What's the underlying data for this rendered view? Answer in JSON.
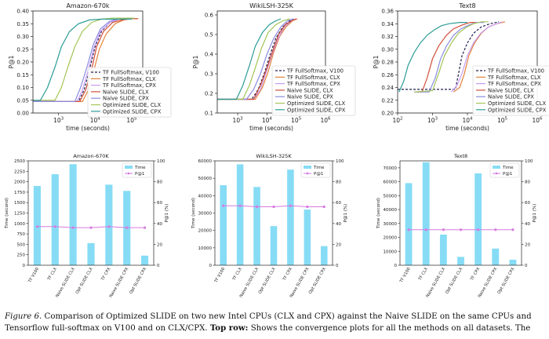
{
  "chart_data": [
    {
      "type": "line",
      "title": "Amazon-670k",
      "xlabel": "time (seconds)",
      "ylabel": "P@1",
      "xscale": "log",
      "xlim": [
        200,
        200000
      ],
      "ylim": [
        0.0,
        0.4
      ],
      "yticks": [
        "0.00",
        "0.05",
        "0.10",
        "0.15",
        "0.20",
        "0.25",
        "0.30",
        "0.35",
        "0.40"
      ],
      "xticks": [
        "10^3",
        "10^4",
        "10^5"
      ],
      "grid": false,
      "legend_position": "right",
      "series": [
        {
          "name": "TF FullSoftmax, V100",
          "color": "#1f1f4f",
          "dash": true,
          "x": [
            200,
            3500,
            5000,
            7000,
            10000,
            15000,
            25000,
            45000,
            80000,
            120000
          ],
          "y": [
            0.045,
            0.045,
            0.09,
            0.17,
            0.26,
            0.32,
            0.355,
            0.368,
            0.372,
            0.372
          ]
        },
        {
          "name": "TF FullSoftmax, CLX",
          "color": "#e3823b",
          "x": [
            200,
            4500,
            6500,
            9000,
            13000,
            20000,
            35000,
            60000,
            100000,
            150000
          ],
          "y": [
            0.045,
            0.045,
            0.09,
            0.16,
            0.25,
            0.31,
            0.35,
            0.365,
            0.37,
            0.37
          ]
        },
        {
          "name": "TF FullSoftmax, CPX",
          "color": "#c79cf2",
          "x": [
            200,
            3200,
            4500,
            6500,
            9500,
            14000,
            25000,
            45000,
            80000,
            120000
          ],
          "y": [
            0.045,
            0.045,
            0.09,
            0.17,
            0.26,
            0.32,
            0.355,
            0.368,
            0.37,
            0.37
          ]
        },
        {
          "name": "Naive SLIDE, CLX",
          "color": "#d14f3a",
          "x": [
            200,
            3800,
            5500,
            8000,
            11000,
            17000,
            30000,
            55000,
            100000,
            150000
          ],
          "y": [
            0.045,
            0.045,
            0.09,
            0.17,
            0.26,
            0.32,
            0.355,
            0.365,
            0.37,
            0.37
          ]
        },
        {
          "name": "Naive SLIDE, CPX",
          "color": "#8c8ce0",
          "x": [
            200,
            2800,
            4000,
            6000,
            9000,
            14000,
            25000,
            45000,
            80000,
            120000
          ],
          "y": [
            0.045,
            0.045,
            0.1,
            0.18,
            0.27,
            0.33,
            0.36,
            0.37,
            0.372,
            0.372
          ]
        },
        {
          "name": "Optimized SLIDE, CLX",
          "color": "#a3c557",
          "x": [
            200,
            800,
            1200,
            1800,
            2800,
            4500,
            8000,
            15000,
            30000,
            60000,
            120000
          ],
          "y": [
            0.05,
            0.05,
            0.1,
            0.18,
            0.26,
            0.32,
            0.355,
            0.368,
            0.372,
            0.372,
            0.372
          ]
        },
        {
          "name": "Optimized SLIDE, CPX",
          "color": "#2c9c96",
          "x": [
            200,
            320,
            500,
            800,
            1200,
            2000,
            3500,
            7000,
            15000,
            40000,
            100000
          ],
          "y": [
            0.05,
            0.05,
            0.1,
            0.18,
            0.26,
            0.32,
            0.35,
            0.365,
            0.368,
            0.368,
            0.368
          ]
        }
      ]
    },
    {
      "type": "line",
      "title": "WikiLSH-325K",
      "xlabel": "time (seconds)",
      "ylabel": "P@1",
      "xscale": "log",
      "xlim": [
        200,
        1000000
      ],
      "ylim": [
        0.1,
        0.62
      ],
      "yticks": [
        "0.1",
        "0.2",
        "0.3",
        "0.4",
        "0.5",
        "0.6"
      ],
      "xticks": [
        "10^3",
        "10^4",
        "10^5",
        "10^6"
      ],
      "grid": false,
      "legend_position": "right",
      "series": [
        {
          "name": "TF FullSoftmax, V100",
          "color": "#1f1f4f",
          "dash": true,
          "x": [
            200,
            3000,
            5000,
            8000,
            13000,
            20000,
            35000,
            60000,
            100000
          ],
          "y": [
            0.17,
            0.17,
            0.22,
            0.3,
            0.4,
            0.48,
            0.54,
            0.57,
            0.58
          ]
        },
        {
          "name": "TF FullSoftmax, CLX",
          "color": "#e3823b",
          "x": [
            200,
            4000,
            7000,
            11000,
            17000,
            27000,
            45000,
            75000,
            110000
          ],
          "y": [
            0.17,
            0.17,
            0.23,
            0.31,
            0.41,
            0.49,
            0.54,
            0.57,
            0.58
          ]
        },
        {
          "name": "TF FullSoftmax, CPX",
          "color": "#c79cf2",
          "x": [
            200,
            3500,
            6000,
            9500,
            15000,
            24000,
            40000,
            70000,
            100000
          ],
          "y": [
            0.17,
            0.17,
            0.22,
            0.31,
            0.4,
            0.48,
            0.54,
            0.57,
            0.58
          ]
        },
        {
          "name": "Naive SLIDE, CLX",
          "color": "#d14f3a",
          "x": [
            200,
            3500,
            6000,
            10000,
            16000,
            25000,
            42000,
            70000,
            100000
          ],
          "y": [
            0.17,
            0.17,
            0.24,
            0.33,
            0.42,
            0.5,
            0.55,
            0.57,
            0.58
          ]
        },
        {
          "name": "Naive SLIDE, CPX",
          "color": "#8c8ce0",
          "x": [
            200,
            2000,
            3500,
            6000,
            10000,
            17000,
            30000,
            50000,
            80000
          ],
          "y": [
            0.17,
            0.17,
            0.22,
            0.3,
            0.4,
            0.48,
            0.54,
            0.57,
            0.58
          ]
        },
        {
          "name": "Optimized SLIDE, CLX",
          "color": "#a3c557",
          "x": [
            200,
            1500,
            2500,
            4000,
            6500,
            11000,
            20000,
            35000,
            60000
          ],
          "y": [
            0.17,
            0.17,
            0.24,
            0.33,
            0.43,
            0.51,
            0.55,
            0.57,
            0.58
          ]
        },
        {
          "name": "Optimized SLIDE, CPX",
          "color": "#2c9c96",
          "x": [
            200,
            900,
            1500,
            2500,
            4000,
            7000,
            12000,
            20000,
            30000
          ],
          "y": [
            0.17,
            0.17,
            0.24,
            0.34,
            0.44,
            0.51,
            0.55,
            0.57,
            0.58
          ]
        }
      ]
    },
    {
      "type": "line",
      "title": "Text8",
      "xlabel": "time (seconds)",
      "ylabel": "P@1",
      "xscale": "log",
      "xlim": [
        100,
        1000000
      ],
      "ylim": [
        0.2,
        0.36
      ],
      "yticks": [
        "0.20",
        "0.22",
        "0.24",
        "0.26",
        "0.28",
        "0.30",
        "0.32",
        "0.34",
        "0.36"
      ],
      "xticks": [
        "10^2",
        "10^3",
        "10^4",
        "10^5",
        "10^6"
      ],
      "grid": false,
      "legend_position": "right",
      "series": [
        {
          "name": "TF FullSoftmax, V100",
          "color": "#1f1f4f",
          "dash": true,
          "x": [
            100,
            4500,
            5500,
            7000,
            10000,
            15000,
            25000,
            45000,
            80000
          ],
          "y": [
            0.237,
            0.237,
            0.26,
            0.29,
            0.31,
            0.325,
            0.335,
            0.34,
            0.343
          ]
        },
        {
          "name": "TF FullSoftmax, CLX",
          "color": "#e3823b",
          "x": [
            4000,
            6000,
            8000,
            11000,
            16000,
            25000,
            40000,
            70000,
            120000
          ],
          "y": [
            0.233,
            0.24,
            0.26,
            0.29,
            0.31,
            0.325,
            0.335,
            0.34,
            0.343
          ]
        },
        {
          "name": "TF FullSoftmax, CPX",
          "color": "#c79cf2",
          "x": [
            3500,
            5000,
            7000,
            10000,
            15000,
            24000,
            40000,
            70000,
            100000
          ],
          "y": [
            0.233,
            0.243,
            0.262,
            0.29,
            0.31,
            0.325,
            0.335,
            0.34,
            0.343
          ]
        },
        {
          "name": "Naive SLIDE, CLX",
          "color": "#d14f3a",
          "x": [
            300,
            500,
            700,
            1000,
            1500,
            2500,
            4000,
            7000,
            12000,
            20000
          ],
          "y": [
            0.233,
            0.233,
            0.255,
            0.285,
            0.305,
            0.322,
            0.332,
            0.338,
            0.342,
            0.342
          ]
        },
        {
          "name": "Naive SLIDE, CPX",
          "color": "#8c8ce0",
          "x": [
            300,
            800,
            1200,
            1700,
            2500,
            4000,
            6500,
            11000,
            18000,
            30000
          ],
          "y": [
            0.233,
            0.233,
            0.255,
            0.285,
            0.305,
            0.322,
            0.332,
            0.338,
            0.342,
            0.342
          ]
        },
        {
          "name": "Optimized SLIDE, CLX",
          "color": "#a3c557",
          "x": [
            300,
            1000,
            1500,
            2200,
            3500,
            5500,
            9000,
            15000,
            25000,
            40000
          ],
          "y": [
            0.233,
            0.235,
            0.262,
            0.29,
            0.31,
            0.325,
            0.334,
            0.34,
            0.343,
            0.343
          ]
        },
        {
          "name": "Optimized SLIDE, CPX",
          "color": "#2c9c96",
          "x": [
            110,
            150,
            200,
            300,
            450,
            700,
            1100,
            1800,
            3000,
            6000,
            10000
          ],
          "y": [
            0.233,
            0.25,
            0.275,
            0.295,
            0.31,
            0.322,
            0.33,
            0.337,
            0.34,
            0.342,
            0.342
          ]
        }
      ]
    },
    {
      "type": "bar",
      "title": "Amazon-670K",
      "ylabel": "Time (second)",
      "y2label": "P@1 (%)",
      "ylim": [
        0,
        2500
      ],
      "y2lim": [
        0,
        100
      ],
      "yticks": [
        "0",
        "250",
        "500",
        "750",
        "1000",
        "1250",
        "1500",
        "1750",
        "2000",
        "2250",
        "2500"
      ],
      "y2ticks": [
        "0",
        "20",
        "40",
        "60",
        "80",
        "100"
      ],
      "categories": [
        "TF V100",
        "TF CLX",
        "Naive SLIDE CLX",
        "Opt SLIDE CLX",
        "TF CPX",
        "Naive SLIDE CPX",
        "Opt SLIDE CPX"
      ],
      "legend_position": "top-right",
      "series": [
        {
          "name": "Time",
          "kind": "bar",
          "color": "#87dcf5",
          "values": [
            1900,
            2180,
            2420,
            530,
            1930,
            1780,
            230
          ]
        },
        {
          "name": "P@1",
          "kind": "line",
          "axis": "right",
          "color": "#d67be0",
          "values": [
            37,
            37,
            36,
            36,
            37,
            36,
            36
          ]
        }
      ]
    },
    {
      "type": "bar",
      "title": "WikiLSH-325K",
      "ylabel": "Time (second)",
      "y2label": "P@1 (%)",
      "ylim": [
        0,
        60000
      ],
      "y2lim": [
        0,
        100
      ],
      "yticks": [
        "0",
        "10000",
        "20000",
        "30000",
        "40000",
        "50000",
        "60000"
      ],
      "y2ticks": [
        "0",
        "20",
        "40",
        "60",
        "80",
        "100"
      ],
      "categories": [
        "TF V100",
        "TF CLX",
        "Naive SLIDE CLX",
        "Opt SLIDE CLX",
        "TF CPX",
        "Naive SLIDE CPX",
        "Opt SLIDE CPX"
      ],
      "legend_position": "top-right",
      "series": [
        {
          "name": "Time",
          "kind": "bar",
          "color": "#87dcf5",
          "values": [
            46000,
            58000,
            45000,
            22500,
            55000,
            32000,
            11000
          ]
        },
        {
          "name": "P@1",
          "kind": "line",
          "axis": "right",
          "color": "#d67be0",
          "values": [
            57,
            57,
            56,
            56,
            57,
            56,
            56
          ]
        }
      ]
    },
    {
      "type": "bar",
      "title": "Text8",
      "ylabel": "Time (second)",
      "y2label": "P@1 (%)",
      "ylim": [
        0,
        75000
      ],
      "y2lim": [
        0,
        100
      ],
      "yticks": [
        "0",
        "10000",
        "20000",
        "30000",
        "40000",
        "50000",
        "60000",
        "70000"
      ],
      "y2ticks": [
        "0",
        "20",
        "40",
        "60",
        "80",
        "100"
      ],
      "categories": [
        "TF V100",
        "TF CLX",
        "Naive SLIDE CLX",
        "Opt SLIDE CLX",
        "TF CPX",
        "Naive SLIDE CPX",
        "Opt SLIDE CPX"
      ],
      "legend_position": "top-right",
      "series": [
        {
          "name": "Time",
          "kind": "bar",
          "color": "#87dcf5",
          "values": [
            59000,
            74000,
            22000,
            6000,
            66000,
            12000,
            4000
          ]
        },
        {
          "name": "P@1",
          "kind": "line",
          "axis": "right",
          "color": "#d67be0",
          "values": [
            34,
            34,
            34,
            34,
            34,
            34,
            34
          ]
        }
      ]
    }
  ],
  "caption": {
    "label": "Figure 6.",
    "text1": " Comparison of Optimized SLIDE on two new Intel CPUs (CLX and CPX) against the Naive SLIDE on the same CPUs and",
    "text2a": "Tensorflow full-softmax on V100 and on CLX/CPX. ",
    "bold": "Top row:",
    "text2b": " Shows the convergence plots for all the methods on all datasets. The"
  }
}
